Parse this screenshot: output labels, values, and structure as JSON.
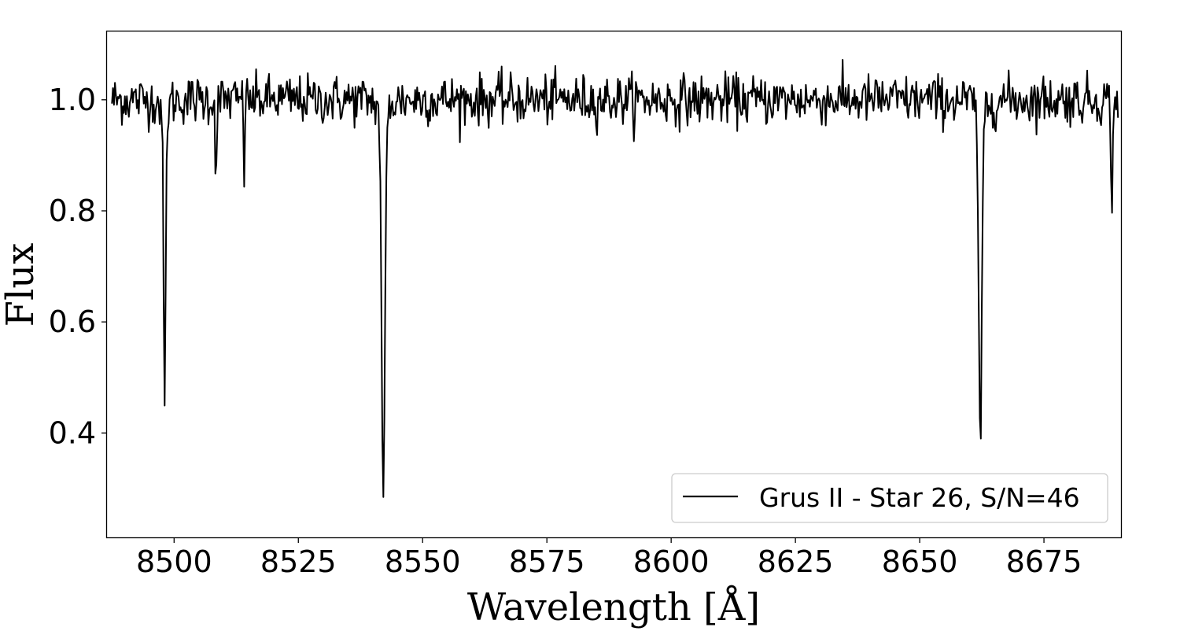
{
  "chart_data": {
    "type": "line",
    "title": "",
    "xlabel": "Wavelength [Å]",
    "ylabel": "Flux",
    "xlim": [
      8486.5,
      8690.5
    ],
    "ylim": [
      0.212,
      1.123
    ],
    "xticks": [
      8500,
      8525,
      8550,
      8575,
      8600,
      8625,
      8650,
      8675
    ],
    "xtick_labels": [
      "8500",
      "8525",
      "8550",
      "8575",
      "8600",
      "8625",
      "8650",
      "8675"
    ],
    "yticks": [
      0.4,
      0.6,
      0.8,
      1.0
    ],
    "ytick_labels": [
      "0.4",
      "0.6",
      "0.8",
      "1.0"
    ],
    "grid": false,
    "legend": {
      "placement": "lower-right",
      "label": "Grus II - Star 26, S/N=46"
    },
    "series": [
      {
        "name": "Grus II - Star 26, S/N=46",
        "color": "#000000",
        "continuum": 1.0,
        "noise_sigma": 0.022,
        "sampling": 0.2,
        "lines": [
          {
            "center": 8498.1,
            "depth": 0.56,
            "width": 0.22
          },
          {
            "center": 8508.4,
            "depth": 0.19,
            "width": 0.1
          },
          {
            "center": 8514.1,
            "depth": 0.13,
            "width": 0.1
          },
          {
            "center": 8542.1,
            "depth": 0.74,
            "width": 0.33
          },
          {
            "center": 8662.2,
            "depth": 0.67,
            "width": 0.3
          },
          {
            "center": 8688.7,
            "depth": 0.19,
            "width": 0.17
          }
        ]
      }
    ]
  }
}
